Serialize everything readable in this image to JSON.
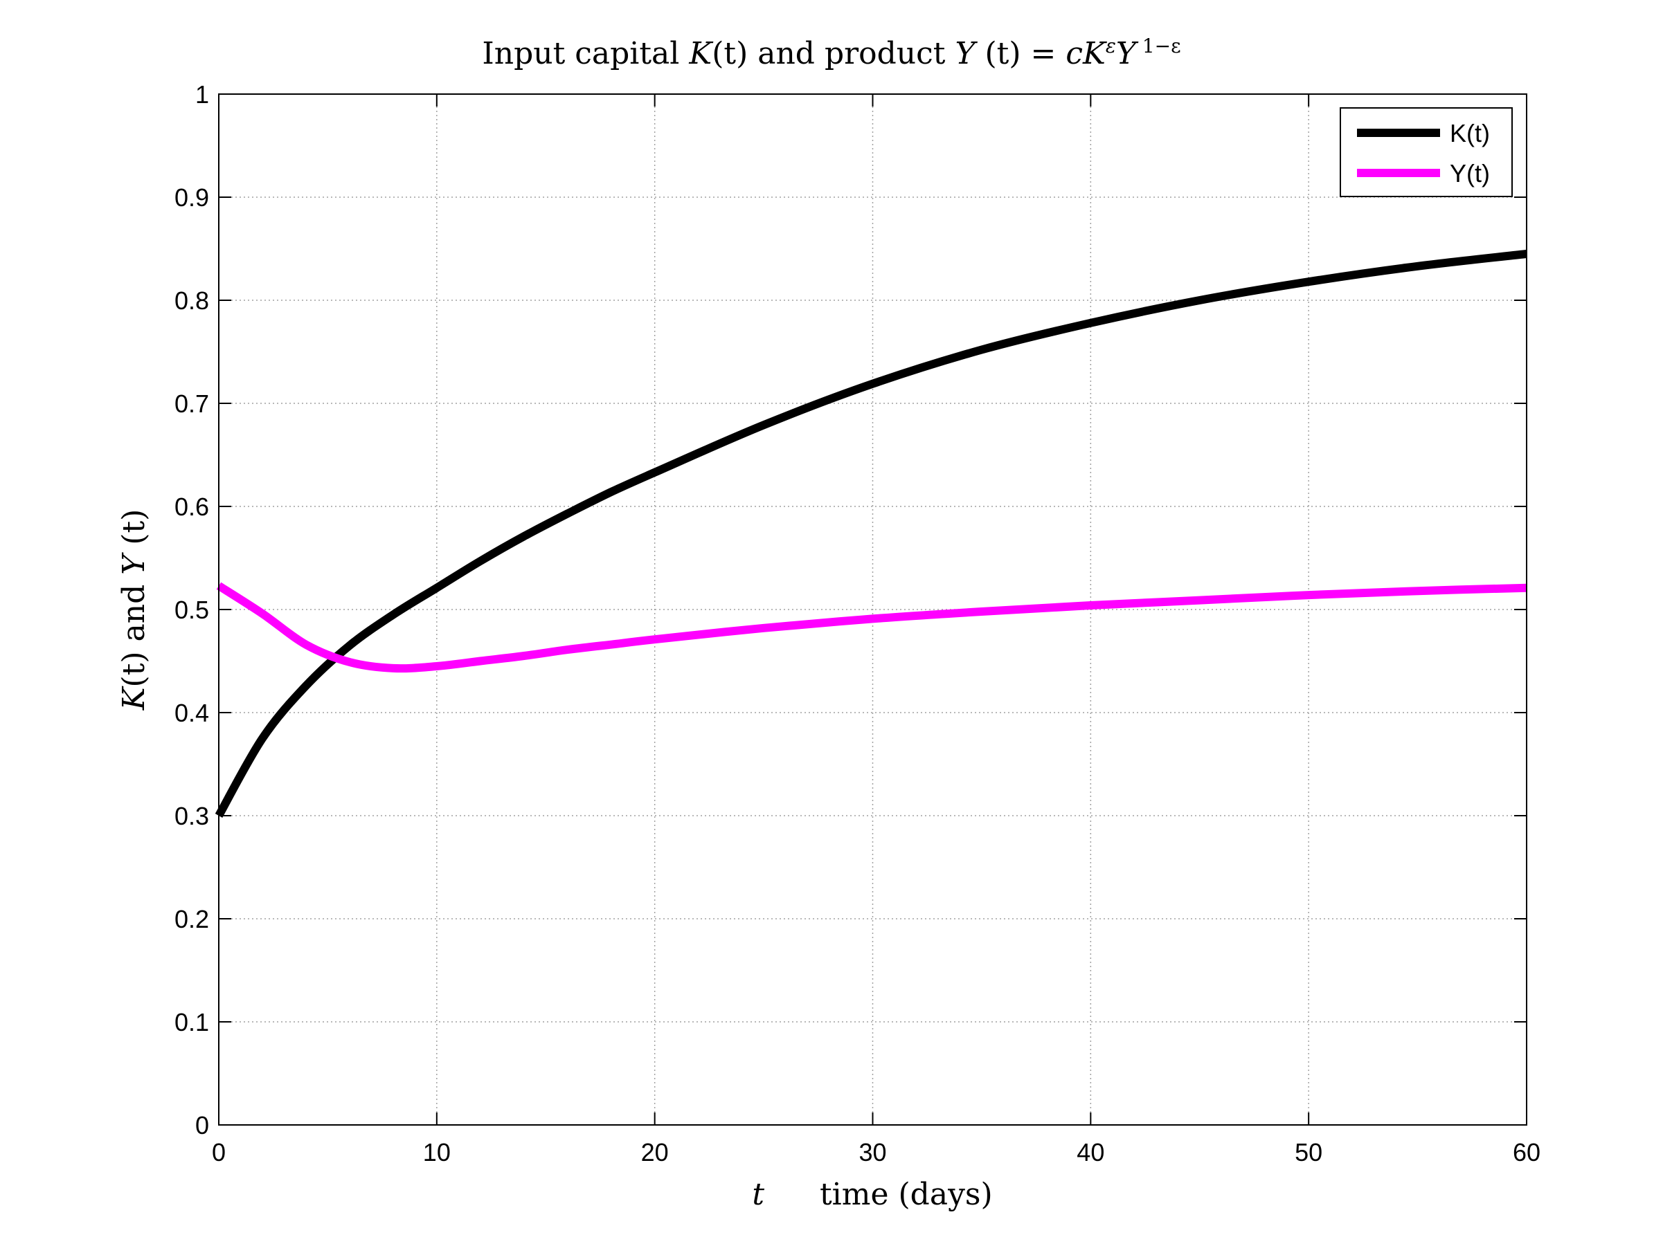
{
  "chart_data": {
    "type": "line",
    "title": "Input capital K(t) and product Y(t) = cK^εY^(1−ε)",
    "title_parts": {
      "lead": "Input capital ",
      "k_var": "K",
      "k_arg": "(t)",
      "mid": " and product ",
      "y_var": "Y",
      "y_arg": " (t) = ",
      "c_var": "cK",
      "eps_sup": "ε",
      "y2_var": "Y",
      "exp_sup": " 1−ε"
    },
    "xlabel": "t     time (days)",
    "xlabel_parts": {
      "var": "t",
      "text": "time (days)"
    },
    "ylabel": "K(t) and Y(t)",
    "ylabel_parts": {
      "k": "K",
      "k_arg": "(t)",
      "mid": " and ",
      "y": "Y",
      "y_arg": " (t)"
    },
    "xlim": [
      0,
      60
    ],
    "ylim": [
      0,
      1
    ],
    "xticks": [
      "0",
      "10",
      "20",
      "30",
      "40",
      "50",
      "60"
    ],
    "yticks": [
      "0",
      "0.1",
      "0.2",
      "0.3",
      "0.4",
      "0.5",
      "0.6",
      "0.7",
      "0.8",
      "0.9",
      "1"
    ],
    "grid": true,
    "legend_position": "top-right",
    "x": [
      0,
      2,
      4,
      6,
      8,
      10,
      12,
      14,
      16,
      18,
      20,
      25,
      30,
      35,
      40,
      45,
      50,
      55,
      60
    ],
    "series": [
      {
        "name": "K(t)",
        "color": "#000000",
        "values": [
          0.3,
          0.375,
          0.426,
          0.465,
          0.495,
          0.521,
          0.547,
          0.571,
          0.593,
          0.614,
          0.633,
          0.679,
          0.719,
          0.752,
          0.778,
          0.8,
          0.818,
          0.833,
          0.845
        ]
      },
      {
        "name": "Y(t)",
        "color": "#ff00ff",
        "values": [
          0.523,
          0.496,
          0.466,
          0.449,
          0.443,
          0.445,
          0.45,
          0.455,
          0.461,
          0.466,
          0.471,
          0.482,
          0.491,
          0.498,
          0.504,
          0.509,
          0.514,
          0.518,
          0.521
        ]
      }
    ]
  }
}
